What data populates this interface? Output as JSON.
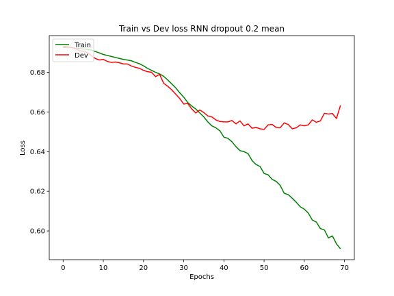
{
  "chart_data": {
    "type": "line",
    "title": "Train vs Dev loss RNN dropout 0.2 mean",
    "xlabel": "Epochs",
    "ylabel": "Loss",
    "xlim": [
      -3.45,
      72.45
    ],
    "ylim": [
      0.5855,
      0.6985
    ],
    "xticks": [
      0,
      10,
      20,
      30,
      40,
      50,
      60,
      70
    ],
    "yticks": [
      0.6,
      0.62,
      0.64,
      0.66,
      0.68
    ],
    "legend": "top-left",
    "grid": false,
    "series": [
      {
        "name": "Train",
        "color": "#008000",
        "x": [
          0,
          1,
          2,
          3,
          4,
          5,
          6,
          7,
          8,
          9,
          10,
          11,
          12,
          13,
          14,
          15,
          16,
          17,
          18,
          19,
          20,
          21,
          22,
          23,
          24,
          25,
          26,
          27,
          28,
          29,
          30,
          31,
          32,
          33,
          34,
          35,
          36,
          37,
          38,
          39,
          40,
          41,
          42,
          43,
          44,
          45,
          46,
          47,
          48,
          49,
          50,
          51,
          52,
          53,
          54,
          55,
          56,
          57,
          58,
          59,
          60,
          61,
          62,
          63,
          64,
          65,
          66,
          67,
          68,
          69
        ],
        "y": [
          0.6925,
          0.6925,
          0.6925,
          0.6922,
          0.692,
          0.6918,
          0.6915,
          0.6912,
          0.6905,
          0.6898,
          0.689,
          0.6885,
          0.688,
          0.6875,
          0.687,
          0.6865,
          0.6862,
          0.6858,
          0.685,
          0.6843,
          0.6833,
          0.682,
          0.681,
          0.68,
          0.6792,
          0.678,
          0.6762,
          0.6742,
          0.6722,
          0.6697,
          0.6675,
          0.6648,
          0.663,
          0.6615,
          0.6595,
          0.6575,
          0.655,
          0.653,
          0.652,
          0.6505,
          0.6473,
          0.6467,
          0.645,
          0.6425,
          0.6405,
          0.64,
          0.639,
          0.6355,
          0.6335,
          0.6325,
          0.629,
          0.6283,
          0.626,
          0.625,
          0.623,
          0.619,
          0.6183,
          0.6165,
          0.6145,
          0.6122,
          0.611,
          0.609,
          0.6055,
          0.6045,
          0.6012,
          0.6005,
          0.5965,
          0.5975,
          0.5935,
          0.591
        ]
      },
      {
        "name": "Dev",
        "color": "#ff0000",
        "x": [
          0,
          1,
          2,
          3,
          4,
          5,
          6,
          7,
          8,
          9,
          10,
          11,
          12,
          13,
          14,
          15,
          16,
          17,
          18,
          19,
          20,
          21,
          22,
          23,
          24,
          25,
          26,
          27,
          28,
          29,
          30,
          31,
          32,
          33,
          34,
          35,
          36,
          37,
          38,
          39,
          40,
          41,
          42,
          43,
          44,
          45,
          46,
          47,
          48,
          49,
          50,
          51,
          52,
          53,
          54,
          55,
          56,
          57,
          58,
          59,
          60,
          61,
          62,
          63,
          64,
          65,
          66,
          67,
          68,
          69
        ],
        "y": [
          0.693,
          0.693,
          0.6925,
          0.692,
          0.691,
          0.6905,
          0.69,
          0.6885,
          0.687,
          0.6862,
          0.6865,
          0.6855,
          0.685,
          0.6852,
          0.6848,
          0.6842,
          0.6842,
          0.6832,
          0.6825,
          0.682,
          0.681,
          0.6803,
          0.68,
          0.6778,
          0.679,
          0.6745,
          0.673,
          0.6712,
          0.669,
          0.6668,
          0.664,
          0.6643,
          0.6615,
          0.6595,
          0.661,
          0.6597,
          0.658,
          0.6575,
          0.656,
          0.6552,
          0.655,
          0.655,
          0.6557,
          0.654,
          0.6555,
          0.653,
          0.654,
          0.6518,
          0.6522,
          0.6515,
          0.6512,
          0.6535,
          0.6537,
          0.6522,
          0.652,
          0.6545,
          0.6537,
          0.6515,
          0.652,
          0.6535,
          0.653,
          0.6535,
          0.656,
          0.6548,
          0.6555,
          0.6593,
          0.659,
          0.6592,
          0.6567,
          0.6633
        ]
      }
    ]
  }
}
